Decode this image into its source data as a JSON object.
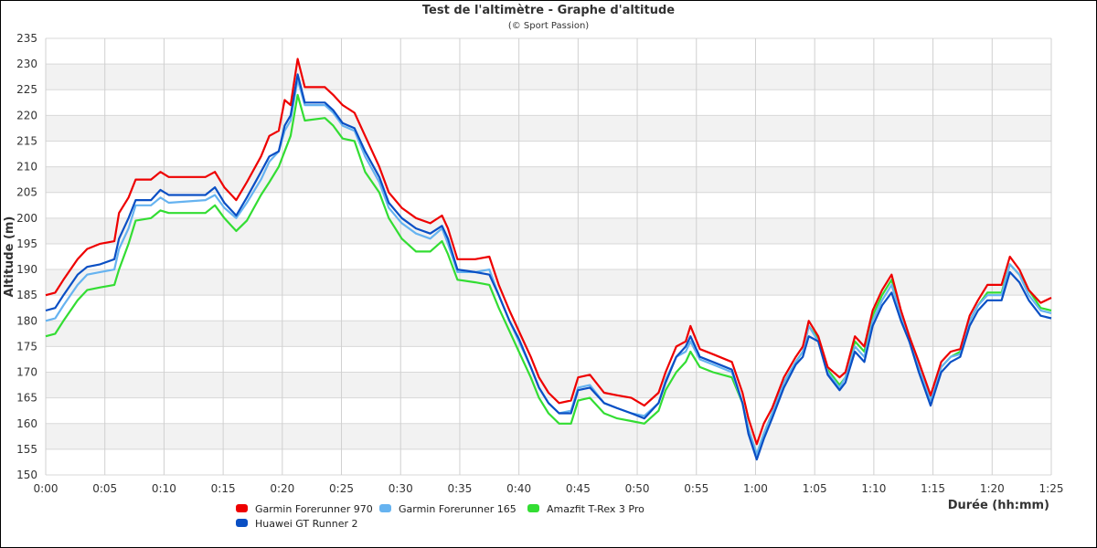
{
  "chart_data": {
    "type": "line",
    "title": "Test de l'altimètre - Graphe d'altitude",
    "subtitle": "(© Sport Passion)",
    "xlabel": "Durée (hh:mm)",
    "ylabel": "Altitude (m)",
    "xlim": [
      0,
      85
    ],
    "ylim": [
      150,
      235
    ],
    "grid": true,
    "legend_position": "bottom",
    "x_ticks": [
      {
        "value": 0,
        "label": "0:00"
      },
      {
        "value": 5,
        "label": "0:05"
      },
      {
        "value": 10,
        "label": "0:10"
      },
      {
        "value": 15,
        "label": "0:15"
      },
      {
        "value": 20,
        "label": "0:20"
      },
      {
        "value": 25,
        "label": "0:25"
      },
      {
        "value": 30,
        "label": "0:30"
      },
      {
        "value": 35,
        "label": "0:35"
      },
      {
        "value": 40,
        "label": "0:40"
      },
      {
        "value": 45,
        "label": "0:45"
      },
      {
        "value": 50,
        "label": "0:50"
      },
      {
        "value": 55,
        "label": "0:55"
      },
      {
        "value": 60,
        "label": "1:00"
      },
      {
        "value": 65,
        "label": "1:05"
      },
      {
        "value": 70,
        "label": "1:10"
      },
      {
        "value": 75,
        "label": "1:15"
      },
      {
        "value": 80,
        "label": "1:20"
      },
      {
        "value": 85,
        "label": "1:25"
      }
    ],
    "y_ticks": [
      150,
      155,
      160,
      165,
      170,
      175,
      180,
      185,
      190,
      195,
      200,
      205,
      210,
      215,
      220,
      225,
      230,
      235
    ],
    "x": [
      0,
      0.8,
      1.5,
      2.7,
      3.5,
      4.6,
      5.8,
      6.2,
      7,
      7.6,
      8.9,
      9.7,
      10.4,
      13.5,
      14.3,
      15.1,
      16.1,
      17,
      18.2,
      18.9,
      19.7,
      20.2,
      20.7,
      21.3,
      21.9,
      23.6,
      24.3,
      25.1,
      26.1,
      27,
      28.2,
      29,
      30.1,
      31.3,
      32.5,
      33.5,
      34,
      34.8,
      36.3,
      37.5,
      38.3,
      39.2,
      40,
      41,
      41.7,
      42.5,
      43.4,
      44.4,
      45,
      46,
      47.2,
      48.3,
      49.5,
      50.6,
      51.8,
      52.4,
      53.3,
      54.1,
      54.5,
      55.3,
      56.4,
      58,
      58.9,
      59.4,
      60.1,
      60.7,
      61.4,
      62.4,
      63.4,
      64,
      64.5,
      65.3,
      66.1,
      67.1,
      67.6,
      68.4,
      69.2,
      69.9,
      70.7,
      71.5,
      72.3,
      73,
      73.8,
      74.8,
      75.7,
      76.5,
      77.3,
      78.1,
      78.8,
      79.6,
      80.8,
      81.5,
      82.3,
      83.1,
      84.1,
      85
    ],
    "series": [
      {
        "name": "Garmin Forerunner 970",
        "color": "#ee0000",
        "values": [
          185,
          185.5,
          188,
          192,
          194,
          195,
          195.5,
          201,
          204,
          207.5,
          207.5,
          209,
          208,
          208,
          209,
          206,
          203.5,
          207,
          212,
          216,
          217,
          223,
          222,
          231,
          225.5,
          225.5,
          224,
          222,
          220.5,
          216,
          210,
          205,
          202,
          200,
          199,
          200.5,
          198,
          192,
          192,
          192.5,
          187,
          182,
          178,
          173,
          169,
          166,
          164,
          164.5,
          169,
          169.5,
          166,
          165.5,
          165,
          163.5,
          166,
          170,
          175,
          176,
          179,
          174.5,
          173.5,
          172,
          166,
          161,
          156,
          160,
          163,
          169,
          173,
          175,
          180,
          177,
          171,
          169,
          170,
          177,
          175,
          182,
          186,
          189,
          182,
          177,
          172,
          165.5,
          172,
          174,
          174.5,
          181,
          184,
          187,
          187,
          192.5,
          190,
          186,
          183.5,
          184.5
        ]
      },
      {
        "name": "Garmin Forerunner 165",
        "color": "#66b3f0",
        "values": [
          180,
          180.5,
          183,
          187,
          189,
          189.5,
          190,
          194,
          198,
          202.5,
          202.5,
          204,
          203,
          203.5,
          204.5,
          202,
          200,
          203,
          207.5,
          211,
          213,
          217,
          219,
          227,
          222,
          222,
          220.5,
          218,
          217,
          212,
          207,
          202,
          199,
          197,
          196,
          198,
          195,
          189.5,
          189.5,
          190,
          185,
          180,
          176,
          171,
          167,
          164,
          162,
          162.5,
          167,
          167.5,
          164,
          163,
          162,
          161.5,
          164,
          168.5,
          173,
          174,
          176,
          172.5,
          171.5,
          170,
          164,
          159,
          154,
          158,
          162,
          168,
          172,
          174,
          179,
          176,
          170,
          167,
          169,
          175,
          173,
          180,
          184,
          187,
          181,
          176,
          171,
          164.5,
          171,
          173,
          173.5,
          180,
          183,
          185,
          185,
          191,
          189,
          185,
          182,
          181.5
        ]
      },
      {
        "name": "Amazfit T-Rex 3 Pro",
        "color": "#33dd33",
        "values": [
          177,
          177.5,
          180,
          184,
          186,
          186.5,
          187,
          190,
          195,
          199.5,
          200,
          201.5,
          201,
          201,
          202.5,
          200,
          197.5,
          199.5,
          204.5,
          207,
          210,
          213,
          216,
          224,
          219,
          219.5,
          218,
          215.5,
          215,
          209,
          205,
          200,
          196,
          193.5,
          193.5,
          195.5,
          193,
          188,
          187.5,
          187,
          182.5,
          178,
          174,
          169,
          165,
          162,
          160,
          160,
          164.5,
          165,
          162,
          161,
          160.5,
          160,
          162.5,
          166.5,
          170,
          172,
          174,
          171,
          170,
          169,
          164,
          159,
          154,
          158,
          162,
          168,
          172,
          174,
          179,
          176.5,
          170.5,
          167.5,
          169,
          176,
          174,
          181,
          185,
          188,
          181.5,
          177,
          171.5,
          165,
          171,
          173,
          174,
          180,
          183,
          185.5,
          185.5,
          191,
          189,
          186,
          182.5,
          182
        ]
      },
      {
        "name": "Huawei GT Runner 2",
        "color": "#0a4fc4",
        "values": [
          182,
          182.5,
          185,
          189,
          190.5,
          191,
          192,
          196,
          200,
          203.5,
          203.5,
          205.5,
          204.5,
          204.5,
          206,
          203,
          200.5,
          204,
          209,
          212,
          213,
          218,
          220,
          228,
          222.5,
          222.5,
          221,
          218.5,
          217.5,
          213,
          208,
          203,
          200,
          198,
          197,
          198.5,
          196,
          190,
          189.5,
          189,
          185,
          180,
          176.5,
          171,
          167,
          164,
          162,
          162,
          166.5,
          167,
          164,
          163,
          162,
          161,
          164,
          168,
          173,
          175,
          177,
          173,
          172,
          170.5,
          164,
          158,
          153,
          157,
          161,
          167,
          171.5,
          173,
          177,
          176,
          169.5,
          166.5,
          168,
          174,
          172,
          179,
          183,
          185.5,
          180,
          176,
          170,
          163.5,
          170,
          172,
          173,
          179,
          182,
          184,
          184,
          189.5,
          187.5,
          184,
          181,
          180.5
        ]
      }
    ]
  }
}
